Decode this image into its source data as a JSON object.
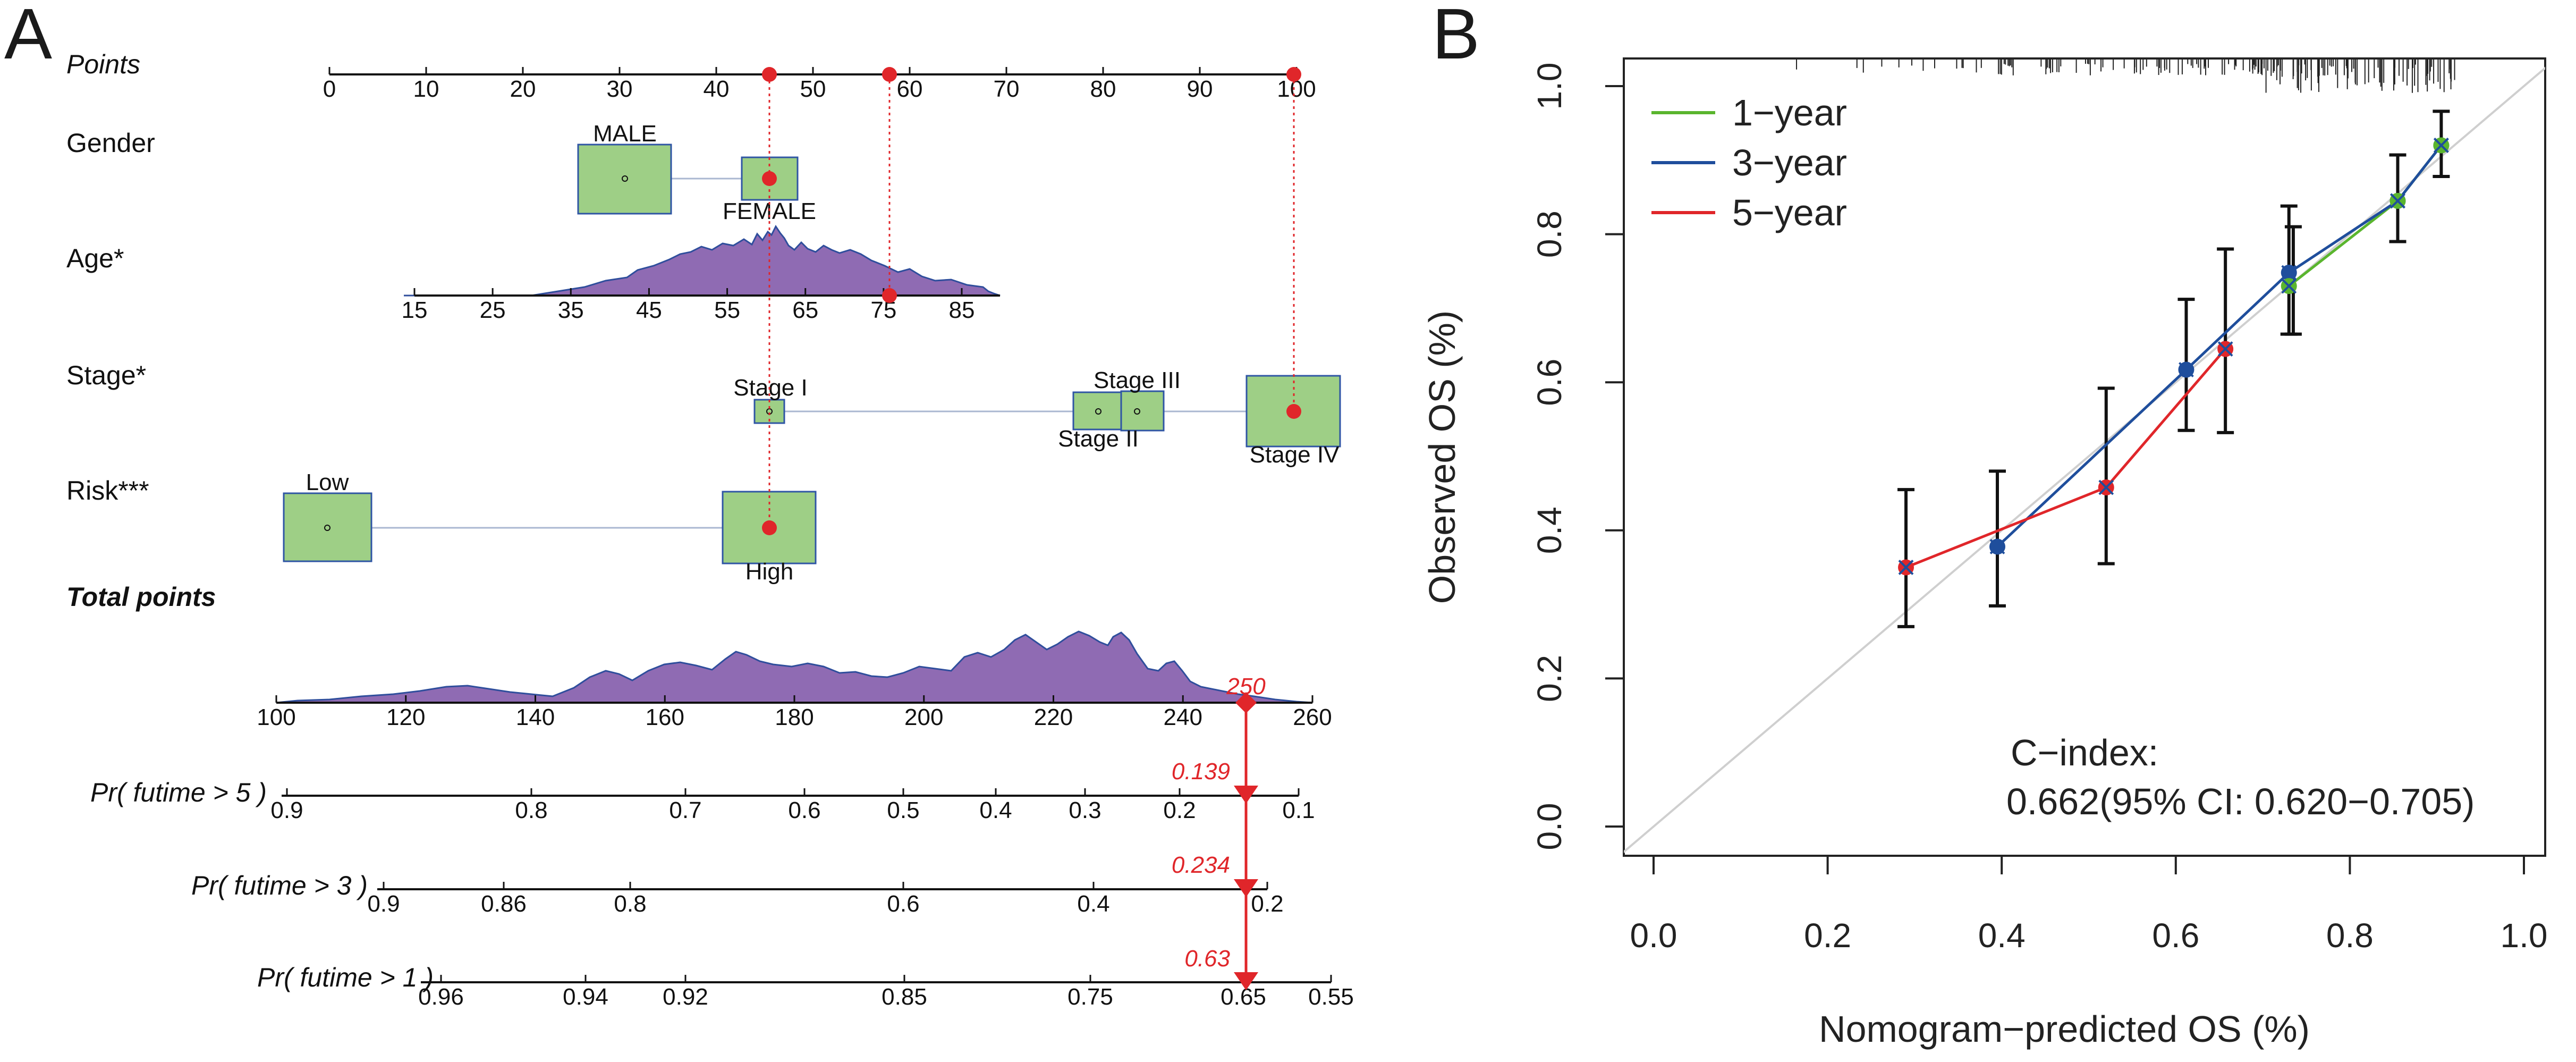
{
  "panels": {
    "a_label": "A",
    "b_label": "B"
  },
  "nomogram": {
    "rows": {
      "points": "Points",
      "gender": "Gender",
      "age": "Age*",
      "stage": "Stage*",
      "risk": "Risk***",
      "total": "Total points",
      "pr5": "Pr( futime > 5 )",
      "pr3": "Pr( futime > 3 )",
      "pr1": "Pr( futime > 1 )"
    },
    "points_ticks": [
      "0",
      "10",
      "20",
      "30",
      "40",
      "50",
      "60",
      "70",
      "80",
      "90",
      "100"
    ],
    "gender_levels": {
      "male": "MALE",
      "female": "FEMALE"
    },
    "age_ticks": [
      "15",
      "25",
      "35",
      "45",
      "55",
      "65",
      "75",
      "85"
    ],
    "stage_levels": {
      "s1": "Stage I",
      "s2": "Stage II",
      "s3": "Stage III",
      "s4": "Stage IV"
    },
    "risk_levels": {
      "low": "Low",
      "high": "High"
    },
    "total_ticks": [
      "100",
      "120",
      "140",
      "160",
      "180",
      "200",
      "220",
      "240",
      "260"
    ],
    "pr5_ticks": [
      "0.9",
      "0.8",
      "0.7",
      "0.6",
      "0.5",
      "0.4",
      "0.3",
      "0.2",
      "0.1"
    ],
    "pr3_ticks": [
      "0.9",
      "0.86",
      "0.8",
      "0.6",
      "0.4",
      "0.2"
    ],
    "pr1_ticks": [
      "0.96",
      "0.94",
      "0.92",
      "0.85",
      "0.75",
      "0.65",
      "0.55"
    ],
    "selected": {
      "total": "250",
      "pr5": "0.139",
      "pr3": "0.234",
      "pr1": "0.63"
    }
  },
  "chart_data": {
    "type": "line",
    "title": "",
    "xlabel": "Nomogram−predicted OS (%)",
    "ylabel": "Observed OS (%)",
    "xlim": [
      0.0,
      1.0
    ],
    "ylim": [
      0.0,
      1.0
    ],
    "x_ticks": [
      "0.0",
      "0.2",
      "0.4",
      "0.6",
      "0.8",
      "1.0"
    ],
    "y_ticks": [
      "0.0",
      "0.2",
      "0.4",
      "0.6",
      "0.8",
      "1.0"
    ],
    "legend_position": "top-left",
    "series": [
      {
        "name": "1-year",
        "label": "1−year",
        "color": "#5ab52e",
        "points": [
          [
            0.73,
            0.73
          ],
          [
            0.855,
            0.845
          ],
          [
            0.905,
            0.92
          ]
        ]
      },
      {
        "name": "3-year",
        "label": "3−year",
        "color": "#1f4e9c",
        "points": [
          [
            0.395,
            0.378
          ],
          [
            0.612,
            0.617
          ],
          [
            0.73,
            0.748
          ],
          [
            0.855,
            0.845
          ],
          [
            0.905,
            0.92
          ]
        ]
      },
      {
        "name": "5-year",
        "label": "5−year",
        "color": "#e0262a",
        "points": [
          [
            0.29,
            0.35
          ],
          [
            0.52,
            0.458
          ],
          [
            0.657,
            0.645
          ]
        ]
      }
    ],
    "error_bars": [
      {
        "x": 0.29,
        "y": 0.35,
        "low": 0.27,
        "high": 0.455
      },
      {
        "x": 0.395,
        "y": 0.378,
        "low": 0.298,
        "high": 0.48
      },
      {
        "x": 0.52,
        "y": 0.458,
        "low": 0.355,
        "high": 0.592
      },
      {
        "x": 0.612,
        "y": 0.617,
        "low": 0.535,
        "high": 0.712
      },
      {
        "x": 0.657,
        "y": 0.645,
        "low": 0.532,
        "high": 0.78
      },
      {
        "x": 0.73,
        "y": 0.748,
        "low": 0.665,
        "high": 0.838
      },
      {
        "x": 0.735,
        "y": 0.73,
        "low": 0.665,
        "high": 0.81
      },
      {
        "x": 0.855,
        "y": 0.845,
        "low": 0.79,
        "high": 0.907
      },
      {
        "x": 0.905,
        "y": 0.92,
        "low": 0.878,
        "high": 0.966
      }
    ],
    "c_index_label": "C−index:",
    "c_index_value": "0.662(95% CI: 0.620−0.705)"
  }
}
